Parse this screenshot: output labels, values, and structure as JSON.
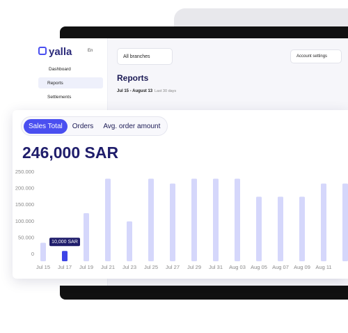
{
  "sidebar": {
    "brand": "yalla",
    "language": "En",
    "items": [
      "Dashboard",
      "Reports",
      "Settlements"
    ]
  },
  "header": {
    "branch_selector": "All branches",
    "account_button": "Account settings"
  },
  "reports": {
    "title": "Reports",
    "date_range": "Jul 15 - August 13",
    "period": "Last 30 days"
  },
  "tabs": [
    "Sales Total",
    "Orders",
    "Avg. order amount"
  ],
  "total": "246,000 SAR",
  "chart_data": {
    "type": "bar",
    "categories": [
      "Jul 15",
      "Jul 17",
      "Jul 19",
      "Jul 21",
      "Jul 23",
      "Jul 25",
      "Jul 27",
      "Jul 29",
      "Jul 31",
      "Aug 03",
      "Aug 05",
      "Aug 07",
      "Aug 09",
      "Aug 11",
      null
    ],
    "values": [
      35000,
      10000,
      125000,
      230000,
      100000,
      230000,
      215000,
      230000,
      230000,
      230000,
      175000,
      175000,
      175000,
      215000,
      215000
    ],
    "value_labels": [
      null,
      "10,000 SAR",
      null,
      null,
      null,
      null,
      null,
      null,
      null,
      null,
      null,
      null,
      null,
      null,
      null
    ],
    "color": "#d5d7fb",
    "highlight_color": "#3d44e6",
    "highlight": 1,
    "ylim": [
      0,
      250000
    ],
    "yticks": [
      {
        "value": 0,
        "label": "0"
      },
      {
        "value": 50000,
        "label": "50.000"
      },
      {
        "value": 100000,
        "label": "100.000"
      },
      {
        "value": 150000,
        "label": "150.000"
      },
      {
        "value": 200000,
        "label": "200.000"
      },
      {
        "value": 250000,
        "label": "250.000"
      }
    ]
  }
}
